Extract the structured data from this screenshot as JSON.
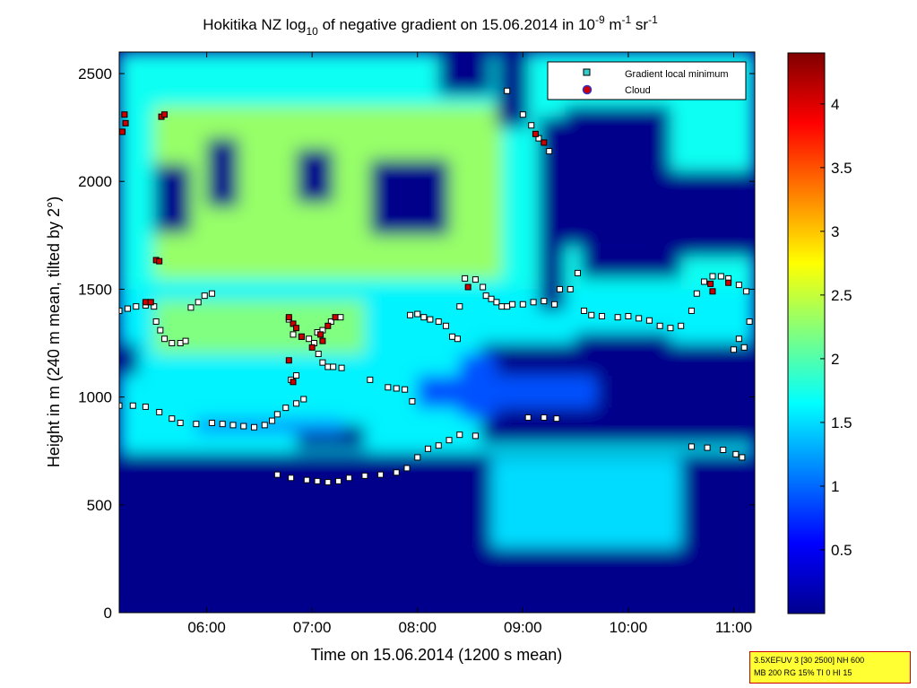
{
  "chart_data": {
    "type": "heatmap",
    "title": "Hokitika NZ log10 of negative gradient on 15.06.2014 in 10-9 m-1 sr-1",
    "title_parts": {
      "prefix": "Hokitika NZ log",
      "prefix_sub": "10",
      "middle": " of negative gradient on 15.06.2014 in 10",
      "exp1": "-9",
      "unit1": " m",
      "exp2": "-1",
      "unit2": " sr",
      "exp3": "-1"
    },
    "xlabel": "Time on 15.06.2014 (1200 s mean)",
    "ylabel": "Height in m (240 m mean, tilted by 2°)",
    "xlim": [
      5.17,
      11.2
    ],
    "ylim": [
      0,
      2600
    ],
    "x_ticks": [
      {
        "value": 6,
        "label": "06:00"
      },
      {
        "value": 7,
        "label": "07:00"
      },
      {
        "value": 8,
        "label": "08:00"
      },
      {
        "value": 9,
        "label": "09:00"
      },
      {
        "value": 10,
        "label": "10:00"
      },
      {
        "value": 11,
        "label": "11:00"
      }
    ],
    "y_ticks": [
      {
        "value": 0,
        "label": "0"
      },
      {
        "value": 500,
        "label": "500"
      },
      {
        "value": 1000,
        "label": "1000"
      },
      {
        "value": 1500,
        "label": "1500"
      },
      {
        "value": 2000,
        "label": "2000"
      },
      {
        "value": 2500,
        "label": "2500"
      }
    ],
    "colorbar": {
      "colormap": "jet",
      "range": [
        0,
        4.4
      ],
      "ticks": [
        {
          "value": 0.5,
          "label": "0.5"
        },
        {
          "value": 1,
          "label": "1"
        },
        {
          "value": 1.5,
          "label": "1.5"
        },
        {
          "value": 2,
          "label": "2"
        },
        {
          "value": 2.5,
          "label": "2.5"
        },
        {
          "value": 3,
          "label": "3"
        },
        {
          "value": 3.5,
          "label": "3.5"
        },
        {
          "value": 4,
          "label": "4"
        }
      ]
    },
    "legend": {
      "placement": "top-right",
      "entries": [
        {
          "label": "Gradient local minimum",
          "marker": "square",
          "color": "#33cccc"
        },
        {
          "label": "Cloud",
          "marker": "circle",
          "color": "#cc0000"
        }
      ]
    },
    "background_regions": [
      {
        "x": [
          5.17,
          11.2
        ],
        "y": [
          0,
          740
        ],
        "value": 0.05
      },
      {
        "x": [
          5.17,
          11.2
        ],
        "y": [
          740,
          1500
        ],
        "value": 1.6
      },
      {
        "x": [
          5.17,
          11.2
        ],
        "y": [
          1500,
          2600
        ],
        "value": 1.7
      },
      {
        "x": [
          5.5,
          8.8
        ],
        "y": [
          1550,
          2350
        ],
        "value": 2.3
      },
      {
        "x": [
          5.5,
          7.5
        ],
        "y": [
          1200,
          1450
        ],
        "value": 2.2
      },
      {
        "x": [
          8.6,
          11.2
        ],
        "y": [
          780,
          1250
        ],
        "value": 0.05
      },
      {
        "x": [
          8.4,
          8.75
        ],
        "y": [
          900,
          1200
        ],
        "value": 0.9
      },
      {
        "x": [
          6.85,
          7.5
        ],
        "y": [
          760,
          870
        ],
        "value": 0.05
      },
      {
        "x": [
          8.0,
          9.7
        ],
        "y": [
          950,
          1100
        ],
        "value": 0.9
      },
      {
        "x": [
          5.17,
          5.35
        ],
        "y": [
          1100,
          1250
        ],
        "value": 0.05
      },
      {
        "x": [
          5.5,
          5.85
        ],
        "y": [
          1760,
          2080
        ],
        "value": 0.05
      },
      {
        "x": [
          6.0,
          6.3
        ],
        "y": [
          1880,
          2200
        ],
        "value": 0.05
      },
      {
        "x": [
          6.85,
          7.2
        ],
        "y": [
          1900,
          2150
        ],
        "value": 0.05
      },
      {
        "x": [
          7.55,
          8.3
        ],
        "y": [
          1750,
          2100
        ],
        "value": 0.05
      },
      {
        "x": [
          8.2,
          8.7
        ],
        "y": [
          2400,
          2600
        ],
        "value": 0.05
      },
      {
        "x": [
          8.75,
          9.05
        ],
        "y": [
          2250,
          2600
        ],
        "value": 0.05
      },
      {
        "x": [
          9.15,
          9.4
        ],
        "y": [
          1400,
          2300
        ],
        "value": 0.05
      },
      {
        "x": [
          9.4,
          10.4
        ],
        "y": [
          1700,
          2350
        ],
        "value": 0.05
      },
      {
        "x": [
          9.55,
          10.5
        ],
        "y": [
          1550,
          1700
        ],
        "value": 0.05
      },
      {
        "x": [
          10.4,
          11.2
        ],
        "y": [
          1650,
          2050
        ],
        "value": 0.05
      },
      {
        "x": [
          8.7,
          10.5
        ],
        "y": [
          300,
          720
        ],
        "value": 1.5
      },
      {
        "x": [
          5.9,
          7.3
        ],
        "y": [
          830,
          900
        ],
        "value": 1.2
      },
      {
        "x": [
          9.5,
          10.4
        ],
        "y": [
          1100,
          1300
        ],
        "value": 0.05
      }
    ],
    "gradient_minimum_series": [
      [
        5.17,
        1400
      ],
      [
        5.25,
        1410
      ],
      [
        5.33,
        1420
      ],
      [
        5.42,
        1425
      ],
      [
        5.5,
        1420
      ],
      [
        5.52,
        1350
      ],
      [
        5.56,
        1310
      ],
      [
        5.6,
        1270
      ],
      [
        5.67,
        1250
      ],
      [
        5.75,
        1250
      ],
      [
        5.8,
        1260
      ],
      [
        5.85,
        1415
      ],
      [
        5.92,
        1440
      ],
      [
        5.98,
        1470
      ],
      [
        6.05,
        1480
      ],
      [
        5.17,
        960
      ],
      [
        5.3,
        960
      ],
      [
        5.42,
        955
      ],
      [
        5.55,
        930
      ],
      [
        5.67,
        900
      ],
      [
        5.75,
        880
      ],
      [
        5.9,
        875
      ],
      [
        6.05,
        880
      ],
      [
        6.15,
        875
      ],
      [
        6.25,
        870
      ],
      [
        6.35,
        865
      ],
      [
        6.45,
        860
      ],
      [
        6.55,
        870
      ],
      [
        6.62,
        890
      ],
      [
        6.67,
        920
      ],
      [
        6.75,
        950
      ],
      [
        6.85,
        970
      ],
      [
        6.92,
        990
      ],
      [
        6.67,
        640
      ],
      [
        6.8,
        625
      ],
      [
        6.95,
        615
      ],
      [
        7.05,
        610
      ],
      [
        7.15,
        605
      ],
      [
        7.25,
        610
      ],
      [
        7.35,
        625
      ],
      [
        7.5,
        635
      ],
      [
        7.65,
        640
      ],
      [
        7.8,
        650
      ],
      [
        7.9,
        670
      ],
      [
        8.0,
        720
      ],
      [
        8.1,
        760
      ],
      [
        8.2,
        775
      ],
      [
        8.3,
        800
      ],
      [
        8.4,
        825
      ],
      [
        8.55,
        820
      ],
      [
        6.78,
        1360
      ],
      [
        6.82,
        1290
      ],
      [
        6.9,
        1280
      ],
      [
        6.97,
        1270
      ],
      [
        7.02,
        1250
      ],
      [
        7.06,
        1200
      ],
      [
        7.1,
        1160
      ],
      [
        7.15,
        1140
      ],
      [
        7.2,
        1140
      ],
      [
        7.28,
        1135
      ],
      [
        6.8,
        1080
      ],
      [
        6.85,
        1100
      ],
      [
        7.05,
        1300
      ],
      [
        7.1,
        1310
      ],
      [
        7.18,
        1350
      ],
      [
        7.27,
        1370
      ],
      [
        7.55,
        1080
      ],
      [
        7.72,
        1045
      ],
      [
        7.8,
        1040
      ],
      [
        7.88,
        1035
      ],
      [
        7.95,
        980
      ],
      [
        7.93,
        1380
      ],
      [
        8.0,
        1385
      ],
      [
        8.06,
        1370
      ],
      [
        8.12,
        1360
      ],
      [
        8.2,
        1350
      ],
      [
        8.27,
        1330
      ],
      [
        8.33,
        1280
      ],
      [
        8.38,
        1270
      ],
      [
        8.4,
        1420
      ],
      [
        8.45,
        1550
      ],
      [
        8.55,
        1545
      ],
      [
        8.62,
        1510
      ],
      [
        8.65,
        1470
      ],
      [
        8.7,
        1455
      ],
      [
        8.75,
        1440
      ],
      [
        8.8,
        1420
      ],
      [
        8.85,
        1420
      ],
      [
        8.9,
        1430
      ],
      [
        9.0,
        1430
      ],
      [
        9.1,
        1440
      ],
      [
        9.2,
        1445
      ],
      [
        9.3,
        1430
      ],
      [
        9.0,
        2310
      ],
      [
        9.08,
        2260
      ],
      [
        9.15,
        2200
      ],
      [
        9.25,
        2140
      ],
      [
        8.85,
        2420
      ],
      [
        9.05,
        905
      ],
      [
        9.2,
        905
      ],
      [
        9.32,
        900
      ],
      [
        9.35,
        1500
      ],
      [
        9.45,
        1500
      ],
      [
        9.52,
        1575
      ],
      [
        9.58,
        1400
      ],
      [
        9.65,
        1380
      ],
      [
        9.75,
        1375
      ],
      [
        9.9,
        1370
      ],
      [
        10.0,
        1375
      ],
      [
        10.1,
        1365
      ],
      [
        10.2,
        1355
      ],
      [
        10.3,
        1330
      ],
      [
        10.4,
        1320
      ],
      [
        10.5,
        1330
      ],
      [
        10.6,
        1400
      ],
      [
        10.65,
        1480
      ],
      [
        10.72,
        1535
      ],
      [
        10.8,
        1560
      ],
      [
        10.88,
        1560
      ],
      [
        10.95,
        1550
      ],
      [
        11.05,
        1520
      ],
      [
        11.12,
        1490
      ],
      [
        10.6,
        770
      ],
      [
        10.75,
        765
      ],
      [
        10.9,
        755
      ],
      [
        11.02,
        735
      ],
      [
        11.08,
        720
      ],
      [
        11.0,
        1220
      ],
      [
        11.1,
        1230
      ],
      [
        11.15,
        1350
      ],
      [
        11.05,
        1270
      ]
    ],
    "cloud_series": [
      [
        5.2,
        2230
      ],
      [
        5.23,
        2270
      ],
      [
        5.22,
        2310
      ],
      [
        5.57,
        2300
      ],
      [
        5.6,
        2310
      ],
      [
        5.52,
        1635
      ],
      [
        5.55,
        1630
      ],
      [
        5.42,
        1440
      ],
      [
        5.47,
        1440
      ],
      [
        6.78,
        1370
      ],
      [
        6.82,
        1340
      ],
      [
        6.85,
        1320
      ],
      [
        6.9,
        1280
      ],
      [
        6.82,
        1070
      ],
      [
        6.78,
        1170
      ],
      [
        7.08,
        1290
      ],
      [
        7.15,
        1330
      ],
      [
        7.22,
        1370
      ],
      [
        7.1,
        1260
      ],
      [
        7.0,
        1230
      ],
      [
        8.48,
        1510
      ],
      [
        9.12,
        2220
      ],
      [
        9.2,
        2180
      ],
      [
        10.78,
        1525
      ],
      [
        10.8,
        1490
      ],
      [
        10.95,
        1530
      ]
    ]
  },
  "info_box": {
    "line1": "3.5XEFUV 3 [30 2500] NH 600",
    "line2": "MB 200 RG 15% TI 0 HI 15"
  },
  "colors": {
    "axis": "#000000",
    "legend_min_marker": "#33cccc",
    "legend_cloud_marker": "#cc0000",
    "data_min_marker": "#ffffff",
    "data_cloud_marker": "#cc0000",
    "info_bg": "#ffff33",
    "info_border": "#cc0000"
  }
}
